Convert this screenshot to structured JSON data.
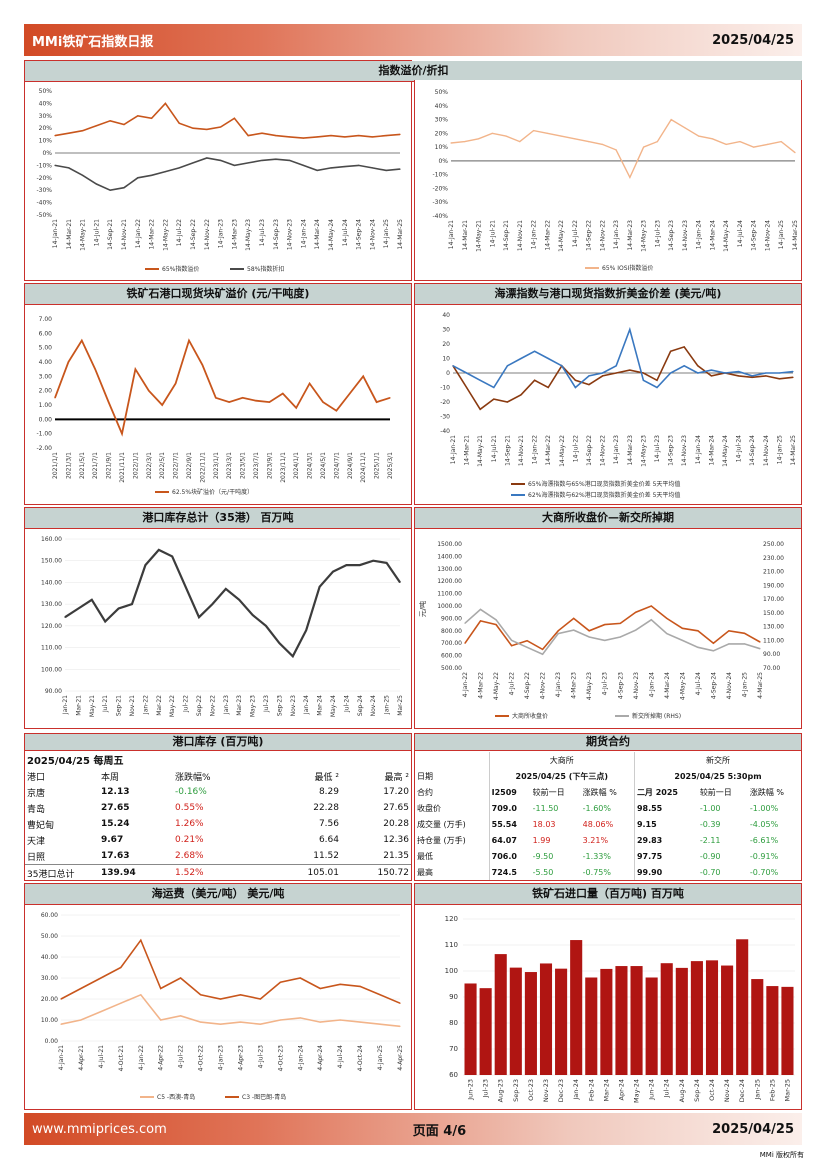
{
  "header": {
    "title": "MMi铁矿石指数日报",
    "date": "2025/04/25"
  },
  "footer": {
    "website": "www.mmiprices.com",
    "page": "页面 4/6",
    "date": "2025/04/25",
    "copyright": "MMi 版权所有"
  },
  "colors": {
    "orange": "#c8561c",
    "gray": "#4a4a4a",
    "peach": "#f2b48a",
    "blue": "#3a78c0",
    "darkred": "#b01512",
    "silver": "#a9a9a9"
  },
  "panels": {
    "p1": {
      "title": "指数溢价/折扣",
      "legend": [
        "65%指数溢价",
        "58%指数折扣"
      ]
    },
    "p2": {
      "legend": [
        "65% IOSI指数溢价"
      ]
    },
    "p3": {
      "title": "铁矿石港口现货块矿溢价 (元/干吨度)",
      "legend": [
        "62.5%块矿溢价（元/干吨度）"
      ]
    },
    "p4": {
      "title": "海漂指数与港口现货指数折美金价差 (美元/吨)",
      "legend": [
        "65%海漂指数与65%港口现货指数折美金价差 5天平均值",
        "62%海漂指数与62%港口现货指数折美金价差 5天平均值"
      ]
    },
    "p5": {
      "title": "港口库存总计（35港） 百万吨"
    },
    "p6": {
      "title": "大商所收盘价—新交所掉期",
      "ylabel": "元/吨",
      "ylabel_right": "美元/吨",
      "legend": [
        "大商所收盘价",
        "新交所掉期 (RHS)"
      ]
    },
    "p7": {
      "title": "港口库存 (百万吨)"
    },
    "p8": {
      "title": "期货合约"
    },
    "p9": {
      "title": "海运费（美元/吨） 美元/吨",
      "legend": [
        "C5 -西澳-青岛",
        "C3 -图巴朗-青岛"
      ]
    },
    "p10": {
      "title": "铁矿石进口量（百万吨) 百万吨"
    }
  },
  "inventory_table": {
    "date_line": "2025/04/25 每周五",
    "headers": [
      "港口",
      "本周",
      "涨跌幅%",
      "最低 ²",
      "最高 ²"
    ],
    "rows": [
      {
        "port": "京唐",
        "week": "12.13",
        "chg": "-0.16%",
        "dir": "neg",
        "low": "8.29",
        "high": "17.20"
      },
      {
        "port": "青岛",
        "week": "27.65",
        "chg": "0.55%",
        "dir": "pos",
        "low": "22.28",
        "high": "27.65"
      },
      {
        "port": "曹妃甸",
        "week": "15.24",
        "chg": "1.26%",
        "dir": "pos",
        "low": "7.56",
        "high": "20.28"
      },
      {
        "port": "天津",
        "week": "9.67",
        "chg": "0.21%",
        "dir": "pos",
        "low": "6.64",
        "high": "12.36"
      },
      {
        "port": "日照",
        "week": "17.63",
        "chg": "2.68%",
        "dir": "pos",
        "low": "11.52",
        "high": "21.35"
      },
      {
        "port": "35港口总计",
        "week": "139.94",
        "chg": "1.52%",
        "dir": "pos",
        "low": "105.01",
        "high": "150.72"
      }
    ]
  },
  "futures_table": {
    "exchanges": [
      "大商所",
      "新交所"
    ],
    "dates": [
      "2025/04/25 (下午三点)",
      "2025/04/25 5:30pm"
    ],
    "row_labels": [
      "日期",
      "合约",
      "收盘价",
      "成交量 (万手)",
      "持仓量 (万手)",
      "最低",
      "最高"
    ],
    "dce_header": [
      "I2509",
      "较前一日",
      "涨跌幅 %"
    ],
    "sgx_header": [
      "二月 2025",
      "较前一日",
      "涨跌幅 %"
    ],
    "rows": [
      {
        "dce": [
          "709.0",
          "-11.50",
          "-1.60%"
        ],
        "dce_dir": "neg",
        "sgx": [
          "98.55",
          "-1.00",
          "-1.00%"
        ],
        "sgx_dir": "neg"
      },
      {
        "dce": [
          "55.54",
          "18.03",
          "48.06%"
        ],
        "dce_dir": "pos",
        "sgx": [
          "9.15",
          "-0.39",
          "-4.05%"
        ],
        "sgx_dir": "neg"
      },
      {
        "dce": [
          "64.07",
          "1.99",
          "3.21%"
        ],
        "dce_dir": "pos",
        "sgx": [
          "29.83",
          "-2.11",
          "-6.61%"
        ],
        "sgx_dir": "neg"
      },
      {
        "dce": [
          "706.0",
          "-9.50",
          "-1.33%"
        ],
        "dce_dir": "neg",
        "sgx": [
          "97.75",
          "-0.90",
          "-0.91%"
        ],
        "sgx_dir": "neg"
      },
      {
        "dce": [
          "724.5",
          "-5.50",
          "-0.75%"
        ],
        "dce_dir": "neg",
        "sgx": [
          "99.90",
          "-0.70",
          "-0.70%"
        ],
        "sgx_dir": "neg"
      }
    ]
  },
  "chart_data": [
    {
      "id": "p1",
      "type": "line",
      "yticks": [
        "50%",
        "40%",
        "30%",
        "20%",
        "10%",
        "0%",
        "-10%",
        "-20%",
        "-30%",
        "-40%",
        "-50%"
      ],
      "ylim": [
        -50,
        50
      ],
      "xticks": [
        "14-Jan-21",
        "14-Mar-21",
        "14-May-21",
        "14-Jul-21",
        "14-Sep-21",
        "14-Nov-21",
        "14-Jan-22",
        "14-Mar-22",
        "14-May-22",
        "14-Jul-22",
        "14-Sep-22",
        "14-Nov-22",
        "14-Jan-23",
        "14-Mar-23",
        "14-May-23",
        "14-Jul-23",
        "14-Sep-23",
        "14-Nov-23",
        "14-Jan-24",
        "14-Mar-24",
        "14-May-24",
        "14-Jul-24",
        "14-Sep-24",
        "14-Nov-24",
        "14-Jan-25",
        "14-Mar-25"
      ],
      "series": [
        {
          "name": "65%指数溢价",
          "color": "#c8561c",
          "values": [
            14,
            16,
            18,
            22,
            26,
            23,
            30,
            28,
            40,
            24,
            20,
            19,
            21,
            28,
            14,
            16,
            14,
            13,
            12,
            13,
            14,
            13,
            14,
            13,
            14,
            15
          ]
        },
        {
          "name": "58%指数折扣",
          "color": "#4a4a4a",
          "values": [
            -10,
            -12,
            -18,
            -25,
            -30,
            -28,
            -20,
            -18,
            -15,
            -12,
            -8,
            -4,
            -6,
            -10,
            -8,
            -6,
            -5,
            -6,
            -10,
            -14,
            -12,
            -11,
            -10,
            -12,
            -14,
            -13
          ]
        }
      ]
    },
    {
      "id": "p2",
      "type": "line",
      "yticks": [
        "50%",
        "40%",
        "30%",
        "20%",
        "10%",
        "0%",
        "-10%",
        "-20%",
        "-30%",
        "-40%"
      ],
      "ylim": [
        -40,
        50
      ],
      "xticks": [
        "14-Jan-21",
        "14-Mar-21",
        "14-May-21",
        "14-Jul-21",
        "14-Sep-21",
        "14-Nov-21",
        "14-Jan-22",
        "14-Mar-22",
        "14-May-22",
        "14-Jul-22",
        "14-Sep-22",
        "14-Nov-22",
        "14-Jan-23",
        "14-Mar-23",
        "14-May-23",
        "14-Jul-23",
        "14-Sep-23",
        "14-Nov-23",
        "14-Jan-24",
        "14-Mar-24",
        "14-May-24",
        "14-Jul-24",
        "14-Sep-24",
        "14-Nov-24",
        "14-Jan-25",
        "14-Mar-25"
      ],
      "series": [
        {
          "name": "65% IOSI指数溢价",
          "color": "#f2b48a",
          "values": [
            13,
            14,
            16,
            20,
            18,
            14,
            22,
            20,
            18,
            16,
            14,
            12,
            8,
            -12,
            10,
            14,
            30,
            24,
            18,
            16,
            12,
            14,
            10,
            12,
            14,
            6
          ]
        }
      ]
    },
    {
      "id": "p3",
      "type": "line",
      "yticks": [
        "7.00",
        "6.00",
        "5.00",
        "4.00",
        "3.00",
        "2.00",
        "1.00",
        "0.00",
        "-1.00",
        "-2.00"
      ],
      "ylim": [
        -2,
        7
      ],
      "xticks": [
        "2021/1/1",
        "2021/3/1",
        "2021/5/1",
        "2021/7/1",
        "2021/9/1",
        "2021/11/1",
        "2022/1/1",
        "2022/3/1",
        "2022/5/1",
        "2022/7/1",
        "2022/9/1",
        "2022/11/1",
        "2023/1/1",
        "2023/3/1",
        "2023/5/1",
        "2023/7/1",
        "2023/9/1",
        "2023/11/1",
        "2024/1/1",
        "2024/3/1",
        "2024/5/1",
        "2024/7/1",
        "2024/9/1",
        "2024/11/1",
        "2025/1/1",
        "2025/3/1"
      ],
      "series": [
        {
          "name": "62.5%块矿溢价（元/干吨度）",
          "color": "#c8561c",
          "values": [
            1.5,
            4.0,
            5.5,
            3.5,
            1.2,
            -1.0,
            3.5,
            2.0,
            1.0,
            2.5,
            5.5,
            3.8,
            1.5,
            1.2,
            1.5,
            1.3,
            1.2,
            1.8,
            0.8,
            2.5,
            1.2,
            0.6,
            1.8,
            3.0,
            1.2,
            1.5
          ]
        }
      ]
    },
    {
      "id": "p4",
      "type": "line",
      "yticks": [
        "40",
        "30",
        "20",
        "10",
        "0",
        "-10",
        "-20",
        "-30",
        "-40"
      ],
      "ylim": [
        -40,
        40
      ],
      "xticks": [
        "14-Jan-21",
        "14-Mar-21",
        "14-May-21",
        "14-Jul-21",
        "14-Sep-21",
        "14-Nov-21",
        "14-Jan-22",
        "14-Mar-22",
        "14-May-22",
        "14-Jul-22",
        "14-Sep-22",
        "14-Nov-22",
        "14-Jan-23",
        "14-Mar-23",
        "14-May-23",
        "14-Jul-23",
        "14-Sep-23",
        "14-Nov-23",
        "14-Jan-24",
        "14-Mar-24",
        "14-May-24",
        "14-Jul-24",
        "14-Sep-24",
        "14-Nov-24",
        "14-Jan-25",
        "14-Mar-25"
      ],
      "series": [
        {
          "name": "65%海漂指数与65%港口现货指数折美金价差 5天平均值",
          "color": "#8a3a10",
          "values": [
            5,
            -10,
            -25,
            -18,
            -20,
            -15,
            -5,
            -10,
            5,
            -5,
            -8,
            -2,
            0,
            2,
            0,
            -5,
            15,
            18,
            5,
            -2,
            0,
            -2,
            -3,
            -2,
            -4,
            -3
          ]
        },
        {
          "name": "62%海漂指数与62%港口现货指数折美金价差 5天平均值",
          "color": "#3a78c0",
          "values": [
            5,
            0,
            -5,
            -10,
            5,
            10,
            15,
            10,
            5,
            -10,
            -2,
            0,
            5,
            30,
            -5,
            -10,
            0,
            5,
            0,
            2,
            0,
            1,
            -2,
            0,
            0,
            1
          ]
        }
      ]
    },
    {
      "id": "p5",
      "type": "line",
      "yticks": [
        "160.00",
        "150.00",
        "140.00",
        "130.00",
        "120.00",
        "110.00",
        "100.00",
        "90.00"
      ],
      "ylim": [
        90,
        160
      ],
      "xticks": [
        "Jan-21",
        "Mar-21",
        "May-21",
        "Jul-21",
        "Sep-21",
        "Nov-21",
        "Jan-22",
        "Mar-22",
        "May-22",
        "Jul-22",
        "Sep-22",
        "Nov-22",
        "Jan-23",
        "Mar-23",
        "May-23",
        "Jul-23",
        "Sep-23",
        "Nov-23",
        "Jan-24",
        "Mar-24",
        "May-24",
        "Jul-24",
        "Sep-24",
        "Nov-24",
        "Jan-25",
        "Mar-25"
      ],
      "series": [
        {
          "name": "港口库存总计",
          "color": "#3c3c3c",
          "values": [
            124,
            128,
            132,
            122,
            128,
            130,
            148,
            155,
            152,
            138,
            124,
            130,
            137,
            132,
            125,
            120,
            112,
            106,
            118,
            138,
            145,
            148,
            148,
            150,
            149,
            140
          ]
        }
      ]
    },
    {
      "id": "p6",
      "type": "line",
      "yticks": [
        "1500.00",
        "1400.00",
        "1300.00",
        "1200.00",
        "1100.00",
        "1000.00",
        "900.00",
        "800.00",
        "700.00",
        "600.00",
        "500.00"
      ],
      "ylim": [
        500,
        1500
      ],
      "yticks_right": [
        "250.00",
        "230.00",
        "210.00",
        "190.00",
        "170.00",
        "150.00",
        "130.00",
        "110.00",
        "90.00",
        "70.00"
      ],
      "ylim_right": [
        70,
        250
      ],
      "xticks": [
        "4-Jan-22",
        "4-Mar-22",
        "4-May-22",
        "4-Jul-22",
        "4-Sep-22",
        "4-Nov-22",
        "4-Jan-23",
        "4-Mar-23",
        "4-May-23",
        "4-Jul-23",
        "4-Sep-23",
        "4-Nov-23",
        "4-Jan-24",
        "4-Mar-24",
        "4-May-24",
        "4-Jul-24",
        "4-Sep-24",
        "4-Nov-24",
        "4-Jan-25",
        "4-Mar-25"
      ],
      "series": [
        {
          "name": "大商所收盘价",
          "color": "#c8561c",
          "values": [
            700,
            880,
            850,
            680,
            720,
            650,
            800,
            900,
            800,
            850,
            860,
            950,
            1000,
            900,
            820,
            800,
            700,
            800,
            780,
            710
          ]
        },
        {
          "name": "新交所掉期 (RHS)",
          "color": "#a9a9a9",
          "axis": "right",
          "values": [
            135,
            155,
            140,
            110,
            100,
            90,
            120,
            125,
            115,
            110,
            115,
            125,
            140,
            120,
            110,
            100,
            95,
            105,
            105,
            98
          ]
        }
      ]
    },
    {
      "id": "p9",
      "type": "line",
      "yticks": [
        "60.00",
        "50.00",
        "40.00",
        "30.00",
        "20.00",
        "10.00",
        "0.00"
      ],
      "ylim": [
        0,
        60
      ],
      "xticks": [
        "4-Jan-21",
        "4-Apr-21",
        "4-Jul-21",
        "4-Oct-21",
        "4-Jan-22",
        "4-Apr-22",
        "4-Jul-22",
        "4-Oct-22",
        "4-Jan-23",
        "4-Apr-23",
        "4-Jul-23",
        "4-Oct-23",
        "4-Jan-24",
        "4-Apr-24",
        "4-Jul-24",
        "4-Oct-24",
        "4-Jan-25",
        "4-Apr-25"
      ],
      "series": [
        {
          "name": "C5 -西澳-青岛",
          "color": "#f2b48a",
          "values": [
            8,
            10,
            14,
            18,
            22,
            10,
            12,
            9,
            8,
            9,
            8,
            10,
            11,
            9,
            10,
            9,
            8,
            7
          ]
        },
        {
          "name": "C3 -图巴朗-青岛",
          "color": "#c8561c",
          "values": [
            20,
            25,
            30,
            35,
            48,
            25,
            30,
            22,
            20,
            22,
            20,
            28,
            30,
            25,
            27,
            26,
            22,
            18
          ]
        }
      ]
    },
    {
      "id": "p10",
      "type": "bar",
      "yticks": [
        "120",
        "110",
        "100",
        "90",
        "80",
        "70",
        "60"
      ],
      "ylim": [
        60,
        120
      ],
      "categories": [
        "Jun-23",
        "Jul-23",
        "Aug-23",
        "Sep-23",
        "Oct-23",
        "Nov-23",
        "Dec-23",
        "Jan-24",
        "Feb-24",
        "Mar-24",
        "Apr-24",
        "May-24",
        "Jun-24",
        "Jul-24",
        "Aug-24",
        "Sep-24",
        "Oct-24",
        "Nov-24",
        "Dec-24",
        "Jan-25",
        "Feb-25",
        "Mar-25"
      ],
      "values": [
        95.2,
        93.4,
        106.5,
        101.3,
        99.6,
        102.9,
        100.9,
        111.9,
        97.5,
        100.8,
        101.9,
        101.9,
        97.5,
        103.0,
        101.2,
        103.8,
        104.1,
        102.1,
        112.2,
        96.9,
        94.2,
        93.9
      ],
      "color": "#b01512"
    }
  ]
}
